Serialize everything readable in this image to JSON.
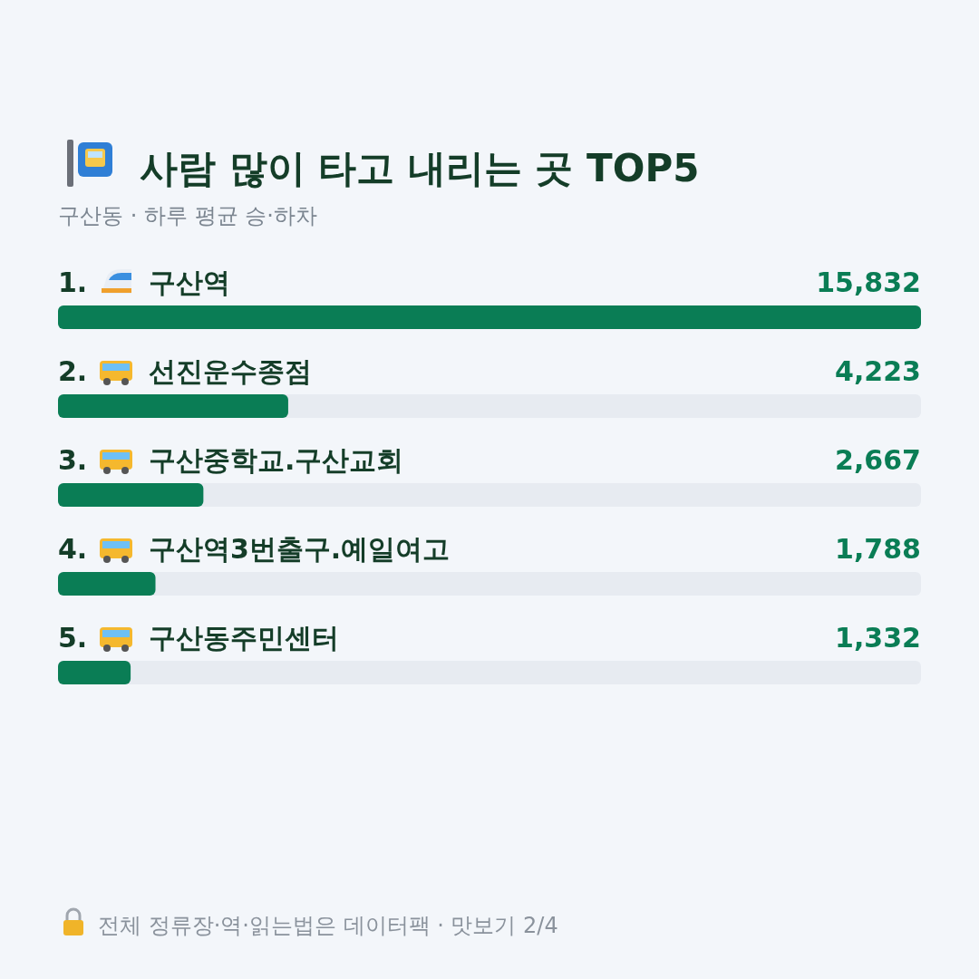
{
  "chart_data": {
    "type": "bar",
    "orientation": "horizontal",
    "title": "사람 많이 타고 내리는 곳 TOP5",
    "subtitle": "구산동 · 하루 평균 승·하차",
    "categories": [
      "1. 구산역",
      "2. 선진운수종점",
      "3. 구산중학교.구산교회",
      "4. 구산역3번출구.예일여고",
      "5. 구산동주민센터"
    ],
    "values": [
      15832,
      4223,
      2667,
      1788,
      1332
    ],
    "value_labels": [
      "15,832",
      "4,223",
      "2,667",
      "1,788",
      "1,332"
    ],
    "color": "#0a7d55",
    "annotations": [
      "전체 정류장·역·읽는법은 데이터팩 · 맛보기 2/4"
    ]
  }
}
